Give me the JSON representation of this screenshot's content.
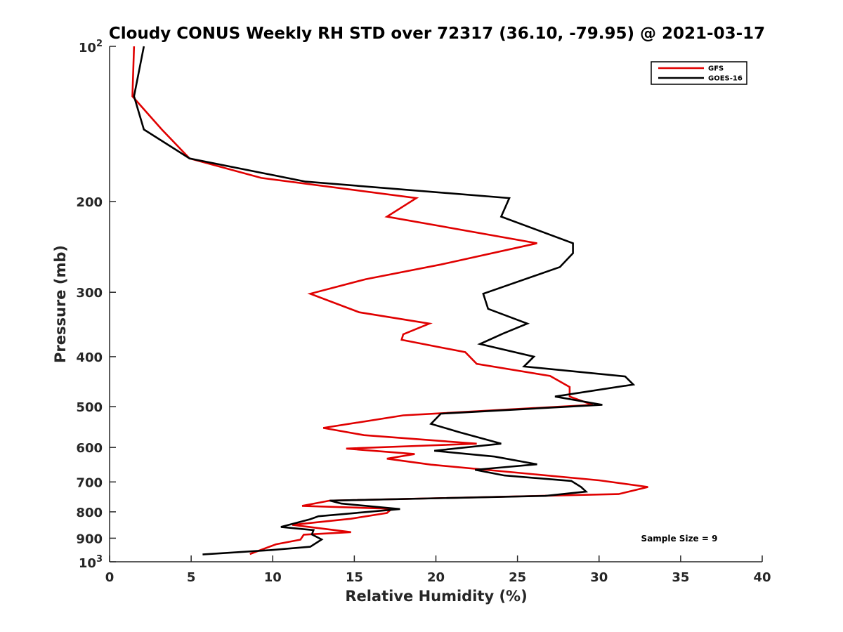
{
  "chart_data": {
    "type": "line",
    "title": "Cloudy CONUS Weekly RH STD over 72317 (36.10, -79.95) @ 2021-03-17",
    "xlabel": "Relative Humidity (%)",
    "ylabel": "Pressure (mb)",
    "xlim": [
      0,
      40
    ],
    "ylim": [
      100,
      1000
    ],
    "y_scale": "log",
    "y_reversed": true,
    "grid": false,
    "legend_position": "top-right",
    "x_ticks": [
      0,
      5,
      10,
      15,
      20,
      25,
      30,
      35,
      40
    ],
    "x_tick_labels": [
      "0",
      "5",
      "10",
      "15",
      "20",
      "25",
      "30",
      "35",
      "40"
    ],
    "y_ticks": [
      200,
      300,
      400,
      500,
      600,
      700,
      800,
      900
    ],
    "y_tick_labels": [
      "200",
      "300",
      "400",
      "500",
      "600",
      "700",
      "800",
      "900"
    ],
    "y_end_labels": [
      {
        "value": 100,
        "base": "10",
        "exp": "2"
      },
      {
        "value": 1000,
        "base": "10",
        "exp": "3"
      }
    ],
    "series": [
      {
        "name": "GFS",
        "color": "#e00000",
        "points": [
          [
            1.5,
            100
          ],
          [
            1.4,
            125
          ],
          [
            3.2,
            145
          ],
          [
            4.9,
            165
          ],
          [
            9.3,
            180
          ],
          [
            18.8,
            197
          ],
          [
            17.0,
            214
          ],
          [
            26.2,
            241
          ],
          [
            20.3,
            265
          ],
          [
            15.7,
            283
          ],
          [
            12.3,
            302
          ],
          [
            15.3,
            328
          ],
          [
            19.6,
            345
          ],
          [
            18.0,
            362
          ],
          [
            17.9,
            371
          ],
          [
            21.8,
            392
          ],
          [
            22.5,
            413
          ],
          [
            27.0,
            436
          ],
          [
            28.2,
            458
          ],
          [
            28.2,
            478
          ],
          [
            29.6,
            496
          ],
          [
            18.0,
            520
          ],
          [
            13.1,
            550
          ],
          [
            15.6,
            568
          ],
          [
            22.5,
            590
          ],
          [
            14.5,
            603
          ],
          [
            18.7,
            618
          ],
          [
            17.0,
            631
          ],
          [
            19.7,
            648
          ],
          [
            30.0,
            695
          ],
          [
            33.0,
            716
          ],
          [
            31.2,
            739
          ],
          [
            13.5,
            761
          ],
          [
            11.8,
            779
          ],
          [
            17.3,
            789
          ],
          [
            17.0,
            804
          ],
          [
            14.8,
            825
          ],
          [
            11.2,
            848
          ],
          [
            14.8,
            876
          ],
          [
            11.9,
            886
          ],
          [
            11.7,
            906
          ],
          [
            10.2,
            925
          ],
          [
            8.6,
            966
          ]
        ]
      },
      {
        "name": "GOES-16",
        "color": "#000000",
        "points": [
          [
            2.1,
            100
          ],
          [
            1.5,
            125
          ],
          [
            2.1,
            145
          ],
          [
            4.9,
            165
          ],
          [
            12.0,
            183
          ],
          [
            24.5,
            197
          ],
          [
            24.0,
            214
          ],
          [
            28.4,
            241
          ],
          [
            28.4,
            252
          ],
          [
            27.6,
            268
          ],
          [
            22.9,
            302
          ],
          [
            23.2,
            323
          ],
          [
            25.6,
            345
          ],
          [
            24.1,
            361
          ],
          [
            22.7,
            378
          ],
          [
            26.0,
            400
          ],
          [
            25.4,
            418
          ],
          [
            31.6,
            437
          ],
          [
            32.1,
            453
          ],
          [
            27.3,
            478
          ],
          [
            30.2,
            496
          ],
          [
            20.3,
            516
          ],
          [
            19.7,
            540
          ],
          [
            21.4,
            560
          ],
          [
            24.0,
            590
          ],
          [
            19.9,
            609
          ],
          [
            23.6,
            625
          ],
          [
            26.2,
            647
          ],
          [
            22.4,
            663
          ],
          [
            24.2,
            680
          ],
          [
            28.3,
            697
          ],
          [
            28.9,
            716
          ],
          [
            29.2,
            731
          ],
          [
            26.7,
            745
          ],
          [
            13.5,
            761
          ],
          [
            14.2,
            771
          ],
          [
            17.8,
            790
          ],
          [
            12.8,
            816
          ],
          [
            12.3,
            827
          ],
          [
            10.5,
            856
          ],
          [
            12.5,
            868
          ],
          [
            12.4,
            885
          ],
          [
            13.0,
            905
          ],
          [
            12.3,
            935
          ],
          [
            9.9,
            949
          ],
          [
            5.7,
            968
          ]
        ]
      }
    ],
    "annotations": [
      "Sample Size = 9"
    ]
  }
}
